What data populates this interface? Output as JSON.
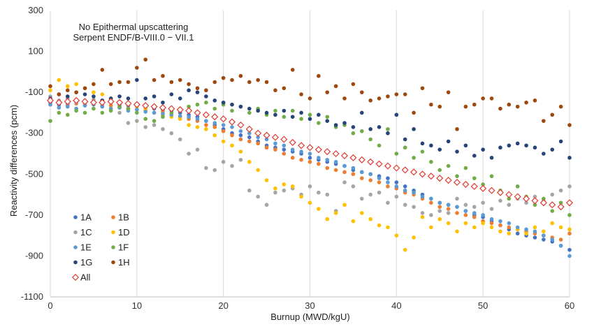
{
  "chart_data": {
    "type": "scatter",
    "annotation": [
      "No Epithermal upscattering",
      "Serpent ENDF/B-VIII.0 − VII.1"
    ],
    "xlabel": "Burnup (MWD/kgU)",
    "ylabel": "Reactivity differences (pcm)",
    "xlim": [
      0,
      60
    ],
    "ylim": [
      -1100,
      300
    ],
    "x_ticks": [
      "0",
      "10",
      "20",
      "30",
      "40",
      "50",
      "60"
    ],
    "y_ticks": [
      "300",
      "100",
      "-100",
      "-300",
      "-500",
      "-700",
      "-900",
      "-1100"
    ],
    "grid": "vertical",
    "legend_position": "bottom-left",
    "series": [
      {
        "name": "1A",
        "color": "#4472C4",
        "marker": "dot",
        "x": [
          0,
          1,
          2,
          3,
          4,
          5,
          6,
          7,
          8,
          9,
          10,
          11,
          12,
          13,
          14,
          15,
          16,
          17,
          18,
          19,
          20,
          21,
          22,
          23,
          24,
          25,
          26,
          27,
          28,
          29,
          30,
          31,
          32,
          33,
          34,
          35,
          36,
          37,
          38,
          39,
          40,
          41,
          42,
          43,
          44,
          45,
          46,
          47,
          48,
          49,
          50,
          51,
          52,
          53,
          54,
          55,
          56,
          57,
          58,
          59,
          60
        ],
        "y": [
          -150,
          -160,
          -155,
          -145,
          -150,
          -155,
          -140,
          -150,
          -160,
          -165,
          -170,
          -175,
          -180,
          -185,
          -190,
          -200,
          -210,
          -220,
          -240,
          -260,
          -280,
          -300,
          -310,
          -320,
          -340,
          -360,
          -370,
          -380,
          -390,
          -400,
          -420,
          -430,
          -440,
          -450,
          -460,
          -480,
          -490,
          -500,
          -510,
          -520,
          -540,
          -560,
          -580,
          -600,
          -620,
          -640,
          -650,
          -660,
          -680,
          -700,
          -710,
          -730,
          -750,
          -770,
          -790,
          -800,
          -810,
          -820,
          -830,
          -850,
          -870
        ]
      },
      {
        "name": "1B",
        "color": "#ED7D31",
        "marker": "dot",
        "x": [
          0,
          1,
          2,
          3,
          4,
          5,
          6,
          7,
          8,
          9,
          10,
          11,
          12,
          13,
          14,
          15,
          16,
          17,
          18,
          19,
          20,
          21,
          22,
          23,
          24,
          25,
          26,
          27,
          28,
          29,
          30,
          31,
          32,
          33,
          34,
          35,
          36,
          37,
          38,
          39,
          40,
          41,
          42,
          43,
          44,
          45,
          46,
          47,
          48,
          49,
          50,
          51,
          52,
          53,
          54,
          55,
          56,
          57,
          58,
          59,
          60
        ],
        "y": [
          -160,
          -150,
          -165,
          -155,
          -160,
          -150,
          -170,
          -165,
          -175,
          -180,
          -185,
          -190,
          -200,
          -195,
          -210,
          -220,
          -230,
          -240,
          -260,
          -270,
          -290,
          -310,
          -330,
          -340,
          -350,
          -370,
          -380,
          -400,
          -420,
          -430,
          -440,
          -450,
          -470,
          -480,
          -490,
          -500,
          -520,
          -530,
          -540,
          -560,
          -570,
          -590,
          -600,
          -620,
          -640,
          -660,
          -670,
          -690,
          -700,
          -710,
          -730,
          -740,
          -750,
          -760,
          -770,
          -780,
          -790,
          -800,
          -810,
          -820,
          -790
        ]
      },
      {
        "name": "1C",
        "color": "#A5A5A5",
        "marker": "dot",
        "x": [
          0,
          1,
          2,
          3,
          4,
          5,
          6,
          7,
          8,
          9,
          10,
          11,
          12,
          13,
          14,
          15,
          16,
          17,
          18,
          19,
          20,
          21,
          22,
          23,
          24,
          25,
          26,
          27,
          28,
          29,
          30,
          31,
          32,
          33,
          34,
          35,
          36,
          37,
          38,
          39,
          40,
          41,
          42,
          43,
          44,
          45,
          46,
          47,
          48,
          49,
          50,
          51,
          52,
          53,
          54,
          55,
          56,
          57,
          58,
          59,
          60
        ],
        "y": [
          -120,
          -140,
          -130,
          -150,
          -140,
          -135,
          -160,
          -180,
          -200,
          -250,
          -240,
          -270,
          -260,
          -280,
          -300,
          -330,
          -400,
          -380,
          -470,
          -480,
          -440,
          -460,
          -430,
          -580,
          -610,
          -650,
          -590,
          -580,
          -570,
          -600,
          -560,
          -590,
          -600,
          -680,
          -540,
          -560,
          -620,
          -600,
          -590,
          -640,
          -610,
          -650,
          -660,
          -690,
          -700,
          -680,
          -690,
          -620,
          -650,
          -660,
          -640,
          -670,
          -630,
          -650,
          -620,
          -640,
          -610,
          -630,
          -600,
          -580,
          -560
        ]
      },
      {
        "name": "1D",
        "color": "#FFC000",
        "marker": "dot",
        "x": [
          0,
          1,
          2,
          3,
          4,
          5,
          6,
          7,
          8,
          9,
          10,
          11,
          12,
          13,
          14,
          15,
          16,
          17,
          18,
          19,
          20,
          21,
          22,
          23,
          24,
          25,
          26,
          27,
          28,
          29,
          30,
          31,
          32,
          33,
          34,
          35,
          36,
          37,
          38,
          39,
          40,
          41,
          42,
          43,
          44,
          45,
          46,
          47,
          48,
          49,
          50,
          51,
          52,
          53,
          54,
          55,
          56,
          57,
          58,
          59,
          60
        ],
        "y": [
          -90,
          -40,
          -70,
          -60,
          -80,
          -100,
          -110,
          -130,
          -150,
          -160,
          -170,
          -180,
          -200,
          -210,
          -220,
          -230,
          -260,
          -270,
          -280,
          -310,
          -340,
          -360,
          -390,
          -440,
          -480,
          -530,
          -570,
          -550,
          -560,
          -610,
          -640,
          -670,
          -720,
          -690,
          -650,
          -730,
          -690,
          -720,
          -750,
          -760,
          -800,
          -870,
          -810,
          -710,
          -760,
          -720,
          -740,
          -780,
          -740,
          -760,
          -740,
          -760,
          -780,
          -790,
          -770,
          -790,
          -760,
          -780,
          -740,
          -760,
          -770
        ]
      },
      {
        "name": "1E",
        "color": "#5B9BD5",
        "marker": "dot",
        "x": [
          0,
          1,
          2,
          3,
          4,
          5,
          6,
          7,
          8,
          9,
          10,
          11,
          12,
          13,
          14,
          15,
          16,
          17,
          18,
          19,
          20,
          21,
          22,
          23,
          24,
          25,
          26,
          27,
          28,
          29,
          30,
          31,
          32,
          33,
          34,
          35,
          36,
          37,
          38,
          39,
          40,
          41,
          42,
          43,
          44,
          45,
          46,
          47,
          48,
          49,
          50,
          51,
          52,
          53,
          54,
          55,
          56,
          57,
          58,
          59,
          60
        ],
        "y": [
          -160,
          -175,
          -170,
          -180,
          -165,
          -160,
          -170,
          -180,
          -175,
          -190,
          -185,
          -195,
          -200,
          -205,
          -210,
          -215,
          -220,
          -230,
          -240,
          -250,
          -260,
          -270,
          -290,
          -300,
          -320,
          -330,
          -350,
          -360,
          -380,
          -390,
          -400,
          -420,
          -430,
          -440,
          -460,
          -470,
          -490,
          -500,
          -520,
          -540,
          -560,
          -580,
          -590,
          -610,
          -620,
          -640,
          -650,
          -660,
          -680,
          -690,
          -700,
          -720,
          -730,
          -740,
          -760,
          -770,
          -780,
          -800,
          -820,
          -850,
          -900
        ]
      },
      {
        "name": "1F",
        "color": "#70AD47",
        "marker": "dot",
        "x": [
          0,
          1,
          2,
          3,
          4,
          5,
          6,
          7,
          8,
          9,
          10,
          11,
          12,
          13,
          14,
          15,
          16,
          17,
          18,
          19,
          20,
          21,
          22,
          23,
          24,
          25,
          26,
          27,
          28,
          29,
          30,
          31,
          32,
          33,
          34,
          35,
          36,
          37,
          38,
          39,
          40,
          41,
          42,
          43,
          44,
          45,
          46,
          47,
          48,
          49,
          50,
          51,
          52,
          53,
          54,
          55,
          56,
          57,
          58,
          59,
          60
        ],
        "y": [
          -240,
          -200,
          -210,
          -190,
          -200,
          -180,
          -200,
          -190,
          -170,
          -180,
          -200,
          -230,
          -240,
          -220,
          -200,
          -180,
          -170,
          -160,
          -150,
          -180,
          -160,
          -190,
          -170,
          -200,
          -180,
          -210,
          -190,
          -220,
          -190,
          -230,
          -210,
          -250,
          -220,
          -270,
          -260,
          -300,
          -290,
          -330,
          -360,
          -280,
          -400,
          -370,
          -420,
          -390,
          -440,
          -480,
          -460,
          -510,
          -470,
          -520,
          -550,
          -510,
          -580,
          -620,
          -560,
          -610,
          -650,
          -620,
          -680,
          -640,
          -700
        ]
      },
      {
        "name": "1G",
        "color": "#264478",
        "marker": "dot",
        "x": [
          0,
          1,
          2,
          3,
          4,
          5,
          6,
          7,
          8,
          9,
          10,
          11,
          12,
          13,
          14,
          15,
          16,
          17,
          18,
          19,
          20,
          21,
          22,
          23,
          24,
          25,
          26,
          27,
          28,
          29,
          30,
          31,
          32,
          33,
          34,
          35,
          36,
          37,
          38,
          39,
          40,
          41,
          42,
          43,
          44,
          45,
          46,
          47,
          48,
          49,
          50,
          51,
          52,
          53,
          54,
          55,
          56,
          57,
          58,
          59,
          60
        ],
        "y": [
          -130,
          -110,
          -120,
          -100,
          -110,
          -120,
          -140,
          -130,
          -120,
          -130,
          -40,
          -130,
          -120,
          -150,
          -110,
          -130,
          -90,
          -100,
          -120,
          -140,
          -150,
          -160,
          -170,
          -180,
          -190,
          -200,
          -210,
          -190,
          -220,
          -200,
          -230,
          -210,
          -240,
          -260,
          -250,
          -270,
          -200,
          -280,
          -270,
          -300,
          -210,
          -330,
          -280,
          -350,
          -360,
          -380,
          -340,
          -390,
          -360,
          -410,
          -380,
          -420,
          -370,
          -360,
          -350,
          -360,
          -370,
          -400,
          -380,
          -340,
          -420
        ]
      },
      {
        "name": "1H",
        "color": "#9E480E",
        "marker": "dot",
        "x": [
          0,
          1,
          2,
          3,
          4,
          5,
          6,
          7,
          8,
          9,
          10,
          11,
          12,
          13,
          14,
          15,
          16,
          17,
          18,
          19,
          20,
          21,
          22,
          23,
          24,
          25,
          26,
          27,
          28,
          29,
          30,
          31,
          32,
          33,
          34,
          35,
          36,
          37,
          38,
          39,
          40,
          41,
          42,
          43,
          44,
          45,
          46,
          47,
          48,
          49,
          50,
          51,
          52,
          53,
          54,
          55,
          56,
          57,
          58,
          59,
          60
        ],
        "y": [
          -70,
          -110,
          -90,
          -100,
          -80,
          -60,
          10,
          -60,
          -50,
          -50,
          20,
          60,
          -40,
          -20,
          -50,
          -40,
          -60,
          -80,
          -90,
          -50,
          -30,
          -40,
          -20,
          -50,
          -40,
          -50,
          -90,
          -80,
          10,
          -110,
          -130,
          -20,
          -100,
          -70,
          -130,
          -60,
          -100,
          -140,
          -130,
          -120,
          -110,
          -110,
          -200,
          -80,
          -160,
          -170,
          -100,
          -280,
          -170,
          -160,
          -130,
          -130,
          -180,
          -160,
          -170,
          -150,
          -140,
          -240,
          -210,
          -170,
          -260
        ]
      },
      {
        "name": "All",
        "color": "#E03C31",
        "marker": "diamond",
        "x": [
          0,
          1,
          2,
          3,
          4,
          5,
          6,
          7,
          8,
          9,
          10,
          11,
          12,
          13,
          14,
          15,
          16,
          17,
          18,
          19,
          20,
          21,
          22,
          23,
          24,
          25,
          26,
          27,
          28,
          29,
          30,
          31,
          32,
          33,
          34,
          35,
          36,
          37,
          38,
          39,
          40,
          41,
          42,
          43,
          44,
          45,
          46,
          47,
          48,
          49,
          50,
          51,
          52,
          53,
          54,
          55,
          56,
          57,
          58,
          59,
          60
        ],
        "y": [
          -140,
          -150,
          -145,
          -140,
          -145,
          -150,
          -150,
          -145,
          -150,
          -155,
          -160,
          -165,
          -170,
          -175,
          -180,
          -185,
          -190,
          -200,
          -210,
          -220,
          -230,
          -245,
          -260,
          -280,
          -300,
          -310,
          -320,
          -330,
          -345,
          -360,
          -370,
          -380,
          -390,
          -400,
          -410,
          -420,
          -430,
          -440,
          -450,
          -460,
          -470,
          -480,
          -490,
          -500,
          -510,
          -520,
          -530,
          -540,
          -550,
          -560,
          -570,
          -580,
          -590,
          -600,
          -610,
          -620,
          -630,
          -640,
          -650,
          -660,
          -640
        ]
      }
    ]
  }
}
